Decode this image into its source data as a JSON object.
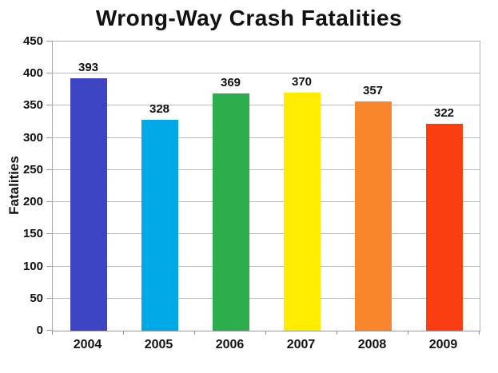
{
  "chart_data": {
    "type": "bar",
    "title": "Wrong-Way Crash Fatalities",
    "xlabel": "",
    "ylabel": "Fatalities",
    "categories": [
      "2004",
      "2005",
      "2006",
      "2007",
      "2008",
      "2009"
    ],
    "values": [
      393,
      328,
      369,
      370,
      357,
      322
    ],
    "bar_colors": [
      "#3E45C4",
      "#00A9E6",
      "#2BAE4B",
      "#FFEC00",
      "#F9852C",
      "#FB3E11"
    ],
    "data_labels": [
      "393",
      "328",
      "369",
      "370",
      "357",
      "322"
    ],
    "ylim": [
      0,
      450
    ],
    "yticks": [
      0,
      50,
      100,
      150,
      200,
      250,
      300,
      350,
      400,
      450
    ],
    "grid": true,
    "legend_position": "none",
    "gridline_color": "#b9b9b9",
    "axis_color": "#999999",
    "text_color": "#111111",
    "background_color": "#ffffff"
  }
}
